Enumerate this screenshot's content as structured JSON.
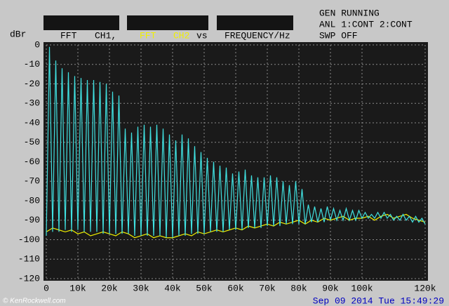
{
  "chart_data": {
    "type": "line",
    "y_label": "dBr",
    "header": [
      "FFT",
      "CH1,",
      "FFT",
      "CH2",
      "vs",
      "FREQUENCY/Hz"
    ],
    "status": [
      "GEN RUNNING",
      "ANL 1:CONT 2:CONT",
      "SWP OFF"
    ],
    "timestamp": "Sep 09 2014 Tue 15:49:29",
    "watermark": "© KenRockwell.com",
    "xlim": [
      0,
      120000
    ],
    "ylim": [
      -120,
      0
    ],
    "grid": true,
    "xticks": [
      0,
      {
        "value": 10000,
        "label": "10k"
      },
      {
        "value": 20000,
        "label": "20k"
      },
      {
        "value": 30000,
        "label": "30k"
      },
      {
        "value": 40000,
        "label": "40k"
      },
      {
        "value": 50000,
        "label": "50k"
      },
      {
        "value": 60000,
        "label": "60k"
      },
      {
        "value": 70000,
        "label": "70k"
      },
      {
        "value": 80000,
        "label": "80k"
      },
      {
        "value": 90000,
        "label": "90k"
      },
      {
        "value": 100000,
        "label": "100k"
      },
      {
        "value": 120000,
        "label": "120k"
      }
    ],
    "yticks": [
      0,
      -10,
      -20,
      -30,
      -40,
      -50,
      -60,
      -70,
      -80,
      -90,
      -100,
      -110,
      -120
    ],
    "series": [
      {
        "color": "#f0f000",
        "x": [
          0,
          2000,
          4000,
          6000,
          8000,
          10000,
          12000,
          14000,
          16000,
          18000,
          20000,
          22000,
          24000,
          26000,
          28000,
          30000,
          32000,
          34000,
          36000,
          38000,
          40000,
          42000,
          44000,
          46000,
          48000,
          50000,
          52000,
          54000,
          56000,
          58000,
          60000,
          62000,
          64000,
          66000,
          68000,
          70000,
          72000,
          74000,
          76000,
          78000,
          80000,
          82000,
          84000,
          86000,
          88000,
          90000,
          92000,
          94000,
          96000,
          98000,
          100000,
          102000,
          104000,
          106000,
          108000,
          110000,
          112000,
          114000,
          116000,
          118000,
          120000
        ],
        "values": [
          -96,
          -94,
          -95,
          -96,
          -95,
          -97,
          -96,
          -98,
          -97,
          -96,
          -97,
          -98,
          -96,
          -97,
          -99,
          -98,
          -97,
          -99,
          -98,
          -99,
          -99,
          -98,
          -97,
          -98,
          -96,
          -97,
          -96,
          -95,
          -96,
          -95,
          -94,
          -95,
          -93,
          -94,
          -93,
          -92,
          -93,
          -91,
          -92,
          -91,
          -90,
          -92,
          -90,
          -91,
          -89,
          -90,
          -89,
          -88,
          -90,
          -89,
          -89,
          -88,
          -90,
          -88,
          -87,
          -89,
          -88,
          -87,
          -89,
          -90,
          -91
        ]
      },
      {
        "color": "#40e0e0",
        "x": [
          0,
          1000,
          2000,
          3000,
          4000,
          5000,
          6000,
          7000,
          8000,
          9000,
          10000,
          11000,
          12000,
          13000,
          14000,
          15000,
          16000,
          17000,
          18000,
          19000,
          20000,
          21000,
          22000,
          23000,
          24000,
          25000,
          26000,
          27000,
          28000,
          29000,
          30000,
          31000,
          32000,
          33000,
          34000,
          35000,
          36000,
          37000,
          38000,
          39000,
          40000,
          41000,
          42000,
          43000,
          44000,
          45000,
          46000,
          47000,
          48000,
          49000,
          50000,
          51000,
          52000,
          53000,
          54000,
          55000,
          56000,
          57000,
          58000,
          59000,
          60000,
          61000,
          62000,
          63000,
          64000,
          65000,
          66000,
          67000,
          68000,
          69000,
          70000,
          71000,
          72000,
          73000,
          74000,
          75000,
          76000,
          77000,
          78000,
          79000,
          80000,
          81000,
          82000,
          83000,
          84000,
          85000,
          86000,
          87000,
          88000,
          89000,
          90000,
          91000,
          92000,
          93000,
          94000,
          95000,
          96000,
          97000,
          98000,
          99000,
          100000,
          101000,
          102000,
          103000,
          104000,
          105000,
          106000,
          107000,
          108000,
          109000,
          110000,
          111000,
          112000,
          113000,
          114000,
          115000,
          116000,
          117000,
          118000,
          119000,
          120000
        ],
        "values": [
          -98,
          -1,
          -96,
          -8,
          -96,
          -12,
          -95,
          -14,
          -96,
          -16,
          -95,
          -17,
          -96,
          -18,
          -96,
          -18,
          -96,
          -19,
          -97,
          -20,
          -97,
          -24,
          -97,
          -26,
          -97,
          -43,
          -97,
          -45,
          -98,
          -42,
          -98,
          -41,
          -98,
          -42,
          -98,
          -41,
          -98,
          -43,
          -99,
          -46,
          -99,
          -49,
          -98,
          -46,
          -98,
          -48,
          -97,
          -52,
          -97,
          -55,
          -97,
          -58,
          -96,
          -60,
          -96,
          -62,
          -96,
          -63,
          -95,
          -66,
          -95,
          -65,
          -95,
          -64,
          -94,
          -67,
          -94,
          -68,
          -94,
          -68,
          -93,
          -67,
          -93,
          -68,
          -93,
          -70,
          -92,
          -72,
          -92,
          -70,
          -92,
          -74,
          -92,
          -82,
          -91,
          -83,
          -91,
          -84,
          -91,
          -83,
          -90,
          -84,
          -90,
          -85,
          -90,
          -84,
          -90,
          -85,
          -90,
          -85,
          -89,
          -86,
          -89,
          -87,
          -89,
          -86,
          -89,
          -86,
          -89,
          -87,
          -90,
          -88,
          -90,
          -87,
          -90,
          -88,
          -91,
          -88,
          -91,
          -89,
          -92
        ]
      }
    ]
  }
}
